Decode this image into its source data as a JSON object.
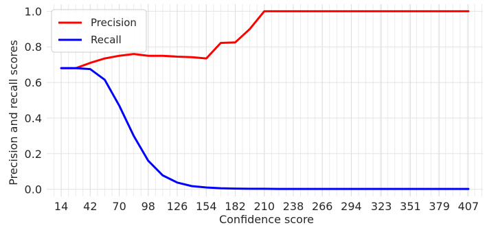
{
  "chart_data": {
    "type": "line",
    "xlabel": "Confidence score",
    "ylabel": "Precision and recall scores",
    "x_ticks": [
      "14",
      "42",
      "70",
      "98",
      "126",
      "154",
      "182",
      "210",
      "238",
      "266",
      "294",
      "323",
      "351",
      "379",
      "407"
    ],
    "xlim": [
      0,
      421
    ],
    "ylim": [
      -0.04,
      1.04
    ],
    "y_ticks": [
      "0.0",
      "0.2",
      "0.4",
      "0.6",
      "0.8",
      "1.0"
    ],
    "grid": true,
    "legend": "upper-left",
    "series": [
      {
        "name": "Precision",
        "color": "#ff0000",
        "x": [
          14,
          28,
          42,
          56,
          70,
          84,
          98,
          112,
          126,
          140,
          154,
          168,
          182,
          196,
          210,
          224,
          238,
          252,
          266,
          280,
          294,
          308,
          323,
          337,
          351,
          365,
          379,
          393,
          407
        ],
        "y": [
          0.68,
          0.68,
          0.71,
          0.735,
          0.75,
          0.76,
          0.75,
          0.75,
          0.745,
          0.742,
          0.735,
          0.822,
          0.825,
          0.9,
          1.0,
          1.0,
          1.0,
          1.0,
          1.0,
          1.0,
          1.0,
          1.0,
          1.0,
          1.0,
          1.0,
          1.0,
          1.0,
          1.0,
          1.0
        ]
      },
      {
        "name": "Recall",
        "color": "#0000ff",
        "x": [
          14,
          28,
          42,
          56,
          70,
          84,
          98,
          112,
          126,
          140,
          154,
          168,
          182,
          196,
          210,
          224,
          238,
          252,
          266,
          280,
          294,
          308,
          323,
          337,
          351,
          365,
          379,
          393,
          407
        ],
        "y": [
          0.68,
          0.68,
          0.675,
          0.615,
          0.47,
          0.3,
          0.16,
          0.078,
          0.038,
          0.018,
          0.01,
          0.006,
          0.004,
          0.003,
          0.003,
          0.002,
          0.002,
          0.002,
          0.002,
          0.002,
          0.002,
          0.002,
          0.002,
          0.002,
          0.002,
          0.002,
          0.002,
          0.002,
          0.002
        ]
      }
    ]
  }
}
